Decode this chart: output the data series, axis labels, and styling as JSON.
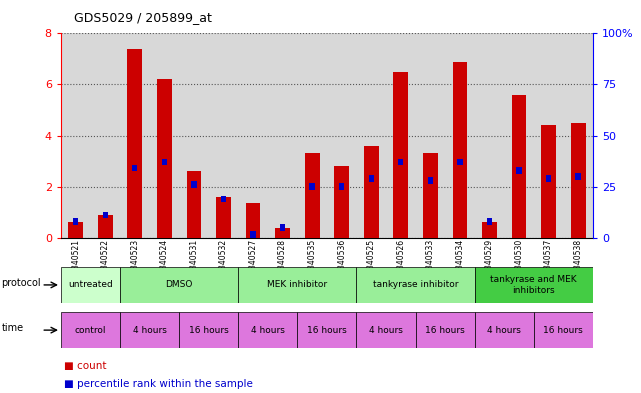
{
  "title": "GDS5029 / 205899_at",
  "samples": [
    "GSM1340521",
    "GSM1340522",
    "GSM1340523",
    "GSM1340524",
    "GSM1340531",
    "GSM1340532",
    "GSM1340527",
    "GSM1340528",
    "GSM1340535",
    "GSM1340536",
    "GSM1340525",
    "GSM1340526",
    "GSM1340533",
    "GSM1340534",
    "GSM1340529",
    "GSM1340530",
    "GSM1340537",
    "GSM1340538"
  ],
  "count_values": [
    0.6,
    0.9,
    7.4,
    6.2,
    2.6,
    1.6,
    1.35,
    0.4,
    3.3,
    2.8,
    3.6,
    6.5,
    3.3,
    6.9,
    0.6,
    5.6,
    4.4,
    4.5
  ],
  "percentile_values": [
    8,
    11,
    34,
    37,
    26,
    19,
    0,
    5,
    25,
    25,
    29,
    37,
    28,
    37,
    8,
    33,
    29,
    30
  ],
  "bar_color": "#cc0000",
  "percentile_color": "#0000cc",
  "left_ylim": [
    0,
    8
  ],
  "right_ylim": [
    0,
    100
  ],
  "left_yticks": [
    0,
    2,
    4,
    6,
    8
  ],
  "right_yticks": [
    0,
    25,
    50,
    75,
    100
  ],
  "right_yticklabels": [
    "0",
    "25",
    "50",
    "75",
    "100%"
  ],
  "protocol_groups": [
    {
      "label": "untreated",
      "start": 0,
      "end": 2,
      "color": "#ccffcc"
    },
    {
      "label": "DMSO",
      "start": 2,
      "end": 6,
      "color": "#99ee99"
    },
    {
      "label": "MEK inhibitor",
      "start": 6,
      "end": 10,
      "color": "#99ee99"
    },
    {
      "label": "tankyrase inhibitor",
      "start": 10,
      "end": 14,
      "color": "#99ee99"
    },
    {
      "label": "tankyrase and MEK\ninhibitors",
      "start": 14,
      "end": 18,
      "color": "#44cc44"
    }
  ],
  "time_groups": [
    {
      "label": "control",
      "start": 0,
      "end": 2,
      "color": "#dd77dd"
    },
    {
      "label": "4 hours",
      "start": 2,
      "end": 4,
      "color": "#dd77dd"
    },
    {
      "label": "16 hours",
      "start": 4,
      "end": 6,
      "color": "#dd77dd"
    },
    {
      "label": "4 hours",
      "start": 6,
      "end": 8,
      "color": "#dd77dd"
    },
    {
      "label": "16 hours",
      "start": 8,
      "end": 10,
      "color": "#dd77dd"
    },
    {
      "label": "4 hours",
      "start": 10,
      "end": 12,
      "color": "#dd77dd"
    },
    {
      "label": "16 hours",
      "start": 12,
      "end": 14,
      "color": "#dd77dd"
    },
    {
      "label": "4 hours",
      "start": 14,
      "end": 16,
      "color": "#dd77dd"
    },
    {
      "label": "16 hours",
      "start": 16,
      "end": 18,
      "color": "#dd77dd"
    }
  ],
  "bg_color": "#d8d8d8",
  "grid_color": "#555555"
}
